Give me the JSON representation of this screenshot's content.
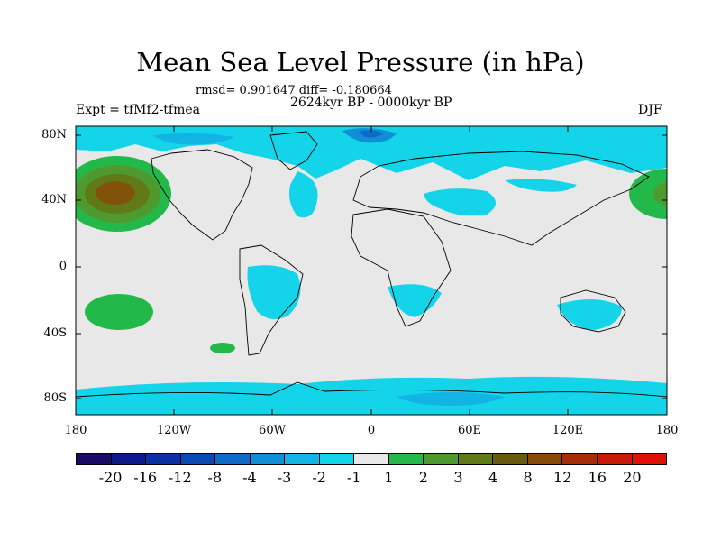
{
  "title": "Mean Sea Level Pressure (in hPa)",
  "stats": "rmsd= 0.901647 diff= -0.180664",
  "period": "2624kyr BP - 0000kyr BP",
  "experiment": "Expt = tfMf2-tfmea",
  "season": "DJF",
  "y_axis_labels": [
    "80N",
    "40N",
    "0",
    "40S",
    "80S"
  ],
  "x_axis_labels": [
    "180",
    "120W",
    "60W",
    "0",
    "60E",
    "120E",
    "180"
  ],
  "colorbar": {
    "colors": [
      "#1a0a66",
      "#0a1a8c",
      "#0c2fa8",
      "#0a48b4",
      "#0d6ac8",
      "#0f8fd8",
      "#11b4e4",
      "#13d4e8",
      "#e8e8e8",
      "#22b84a",
      "#4f9a2e",
      "#607a18",
      "#6a5a10",
      "#8a4a08",
      "#a82c06",
      "#c81806",
      "#e01006"
    ],
    "labels": [
      "-20",
      "-16",
      "-12",
      "-8",
      "-4",
      "-3",
      "-2",
      "-1",
      "1",
      "2",
      "3",
      "4",
      "8",
      "12",
      "16",
      "20"
    ]
  }
}
